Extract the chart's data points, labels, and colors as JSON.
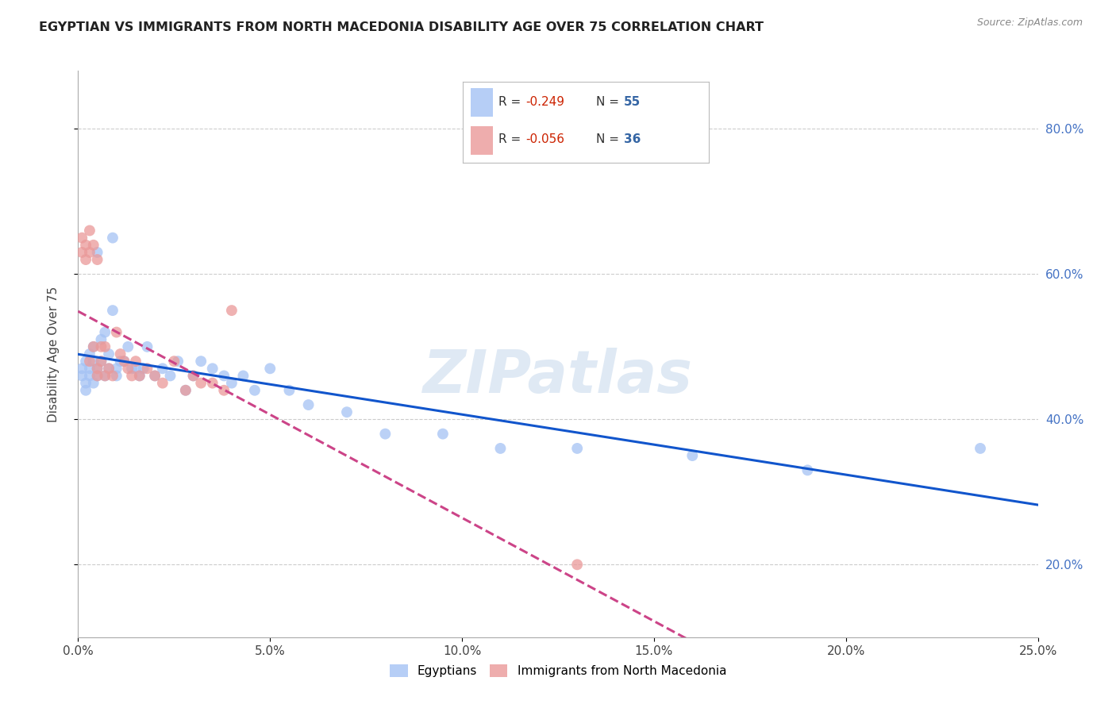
{
  "title": "EGYPTIAN VS IMMIGRANTS FROM NORTH MACEDONIA DISABILITY AGE OVER 75 CORRELATION CHART",
  "source": "Source: ZipAtlas.com",
  "ylabel": "Disability Age Over 75",
  "ylabel_ticks": [
    "20.0%",
    "40.0%",
    "60.0%",
    "80.0%"
  ],
  "ylabel_vals": [
    0.2,
    0.4,
    0.6,
    0.8
  ],
  "xlabel_ticks": [
    "0.0%",
    "5.0%",
    "10.0%",
    "15.0%",
    "20.0%",
    "25.0%"
  ],
  "xlabel_vals": [
    0.0,
    0.05,
    0.1,
    0.15,
    0.2,
    0.25
  ],
  "xmin": 0.0,
  "xmax": 0.25,
  "ymin": 0.1,
  "ymax": 0.88,
  "legend_labels": [
    "Egyptians",
    "Immigrants from North Macedonia"
  ],
  "egyptians_color": "#a4c2f4",
  "nmacedonia_color": "#ea9999",
  "trend_blue_color": "#1155cc",
  "trend_pink_color": "#cc4488",
  "watermark": "ZIPatlas",
  "egyptians_x": [
    0.001,
    0.001,
    0.002,
    0.002,
    0.002,
    0.003,
    0.003,
    0.003,
    0.004,
    0.004,
    0.004,
    0.005,
    0.005,
    0.005,
    0.006,
    0.006,
    0.007,
    0.007,
    0.008,
    0.008,
    0.009,
    0.009,
    0.01,
    0.01,
    0.011,
    0.012,
    0.013,
    0.014,
    0.015,
    0.016,
    0.017,
    0.018,
    0.02,
    0.022,
    0.024,
    0.026,
    0.028,
    0.03,
    0.032,
    0.035,
    0.038,
    0.04,
    0.043,
    0.046,
    0.05,
    0.055,
    0.06,
    0.07,
    0.08,
    0.095,
    0.11,
    0.13,
    0.16,
    0.19,
    0.235
  ],
  "egyptians_y": [
    0.47,
    0.46,
    0.48,
    0.44,
    0.45,
    0.47,
    0.49,
    0.46,
    0.48,
    0.45,
    0.5,
    0.63,
    0.47,
    0.46,
    0.51,
    0.48,
    0.52,
    0.46,
    0.49,
    0.47,
    0.65,
    0.55,
    0.47,
    0.46,
    0.48,
    0.48,
    0.5,
    0.47,
    0.47,
    0.46,
    0.47,
    0.5,
    0.46,
    0.47,
    0.46,
    0.48,
    0.44,
    0.46,
    0.48,
    0.47,
    0.46,
    0.45,
    0.46,
    0.44,
    0.47,
    0.44,
    0.42,
    0.41,
    0.38,
    0.38,
    0.36,
    0.36,
    0.35,
    0.33,
    0.36
  ],
  "nmacedonia_x": [
    0.001,
    0.001,
    0.002,
    0.002,
    0.003,
    0.003,
    0.003,
    0.004,
    0.004,
    0.005,
    0.005,
    0.005,
    0.006,
    0.006,
    0.007,
    0.007,
    0.008,
    0.009,
    0.01,
    0.011,
    0.012,
    0.013,
    0.014,
    0.015,
    0.016,
    0.018,
    0.02,
    0.022,
    0.025,
    0.028,
    0.03,
    0.032,
    0.035,
    0.038,
    0.04,
    0.13
  ],
  "nmacedonia_y": [
    0.65,
    0.63,
    0.64,
    0.62,
    0.66,
    0.63,
    0.48,
    0.64,
    0.5,
    0.62,
    0.47,
    0.46,
    0.5,
    0.48,
    0.5,
    0.46,
    0.47,
    0.46,
    0.52,
    0.49,
    0.48,
    0.47,
    0.46,
    0.48,
    0.46,
    0.47,
    0.46,
    0.45,
    0.48,
    0.44,
    0.46,
    0.45,
    0.45,
    0.44,
    0.55,
    0.2
  ]
}
